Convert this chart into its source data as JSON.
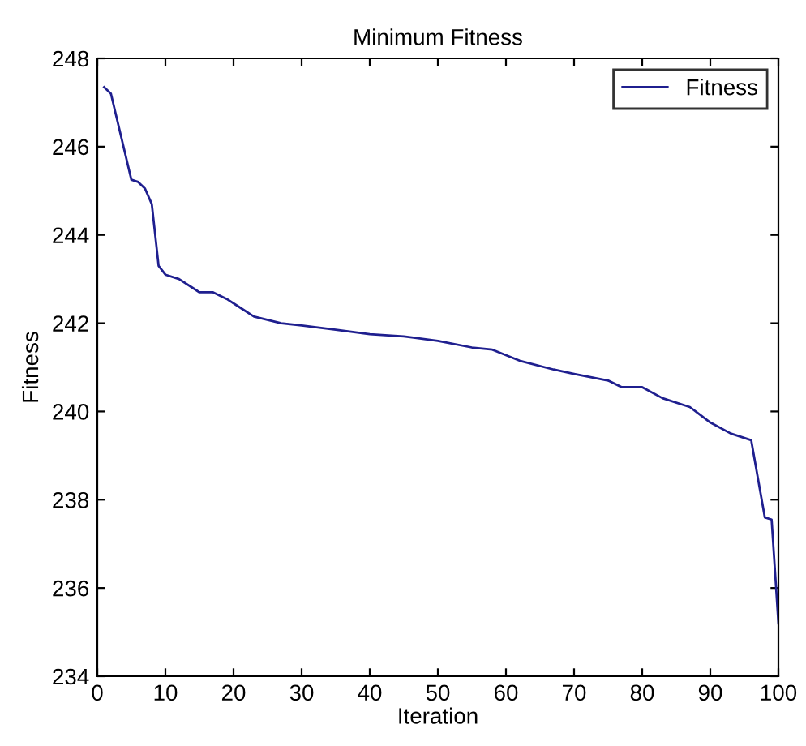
{
  "chart_data": {
    "type": "line",
    "title": "Minimum Fitness",
    "xlabel": "Iteration",
    "ylabel": "Fitness",
    "xlim": [
      0,
      100
    ],
    "xticks": [
      0,
      10,
      20,
      30,
      40,
      50,
      60,
      70,
      80,
      90,
      100
    ],
    "ylim": [
      234,
      248
    ],
    "yticks": [
      234,
      236,
      238,
      240,
      242,
      244,
      246,
      248
    ],
    "grid": false,
    "legend": "top right",
    "series": [
      {
        "name": "Fitness",
        "color": "#1f1f8f",
        "x": [
          1,
          2,
          5,
          6,
          7,
          8,
          9,
          10,
          12,
          14,
          15,
          17,
          19,
          21,
          23,
          27,
          30,
          35,
          40,
          45,
          50,
          55,
          58,
          62,
          67,
          70,
          75,
          77,
          80,
          83,
          87,
          90,
          93,
          96,
          98,
          99,
          100
        ],
        "values": [
          247.35,
          247.2,
          245.25,
          245.2,
          245.05,
          244.7,
          243.3,
          243.1,
          243.0,
          242.8,
          242.7,
          242.7,
          242.55,
          242.35,
          242.15,
          242.0,
          241.95,
          241.85,
          241.75,
          241.7,
          241.6,
          241.45,
          241.4,
          241.15,
          240.95,
          240.85,
          240.7,
          240.55,
          240.55,
          240.3,
          240.1,
          239.75,
          239.5,
          239.35,
          237.6,
          237.55,
          235.2
        ]
      }
    ]
  }
}
